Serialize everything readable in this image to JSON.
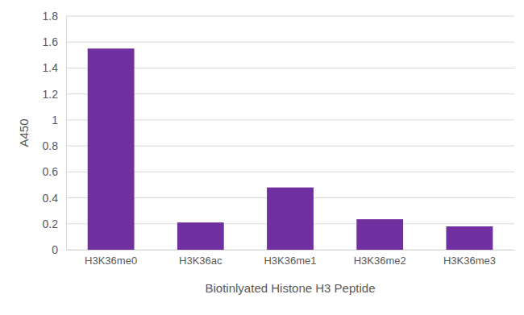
{
  "chart_data": {
    "type": "bar",
    "x_label": "Biotinlyated Histone H3 Peptide",
    "y_label": "A450",
    "categories": [
      "H3K36me0",
      "H3K36ac",
      "H3K36me1",
      "H3K36me2",
      "H3K36me3"
    ],
    "values": [
      1.55,
      0.21,
      0.48,
      0.235,
      0.18
    ],
    "color": "#7030a0",
    "ylim": [
      0,
      1.8
    ],
    "yticks": [
      0,
      0.2,
      0.4,
      0.6,
      0.8,
      1,
      1.2,
      1.4,
      1.6,
      1.8
    ],
    "grid": true
  }
}
